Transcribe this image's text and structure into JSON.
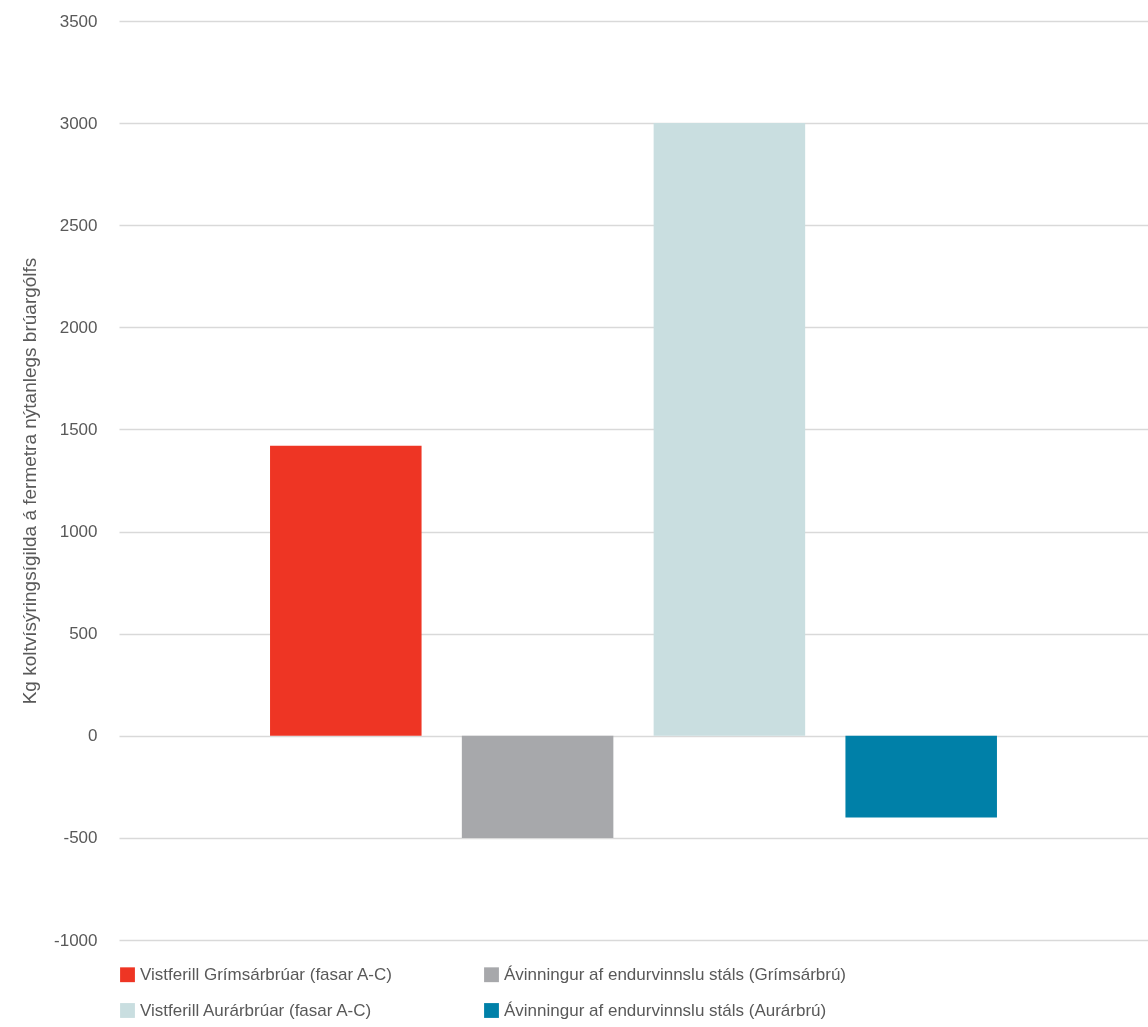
{
  "chart_data": {
    "type": "bar",
    "ylabel": "Kg koltvísýringsígilda á fermetra nýtanlegs brúargólfs",
    "categories": [
      null
    ],
    "series": [
      {
        "name": "Vistferill Grímsárbrúar (fasar A-C)",
        "color": "#ee3524",
        "values": [
          1420
        ]
      },
      {
        "name": "Ávinningur af endurvinnslu stáls (Grímsárbrú)",
        "color": "#a7a8ab",
        "values": [
          -500
        ]
      },
      {
        "name": "Vistferill Aurárbrúar (fasar A-C)",
        "color": "#c9dee0",
        "values": [
          3000
        ]
      },
      {
        "name": "Ávinningur af endurvinnslu stáls (Aurárbrú)",
        "color": "#0080a8",
        "values": [
          -400
        ]
      }
    ],
    "ylim": [
      -1000,
      3500
    ],
    "yticks": [
      -1000,
      -500,
      0,
      500,
      1000,
      1500,
      2000,
      2500,
      3000,
      3500
    ],
    "grid": "y",
    "legend": "bottom"
  }
}
